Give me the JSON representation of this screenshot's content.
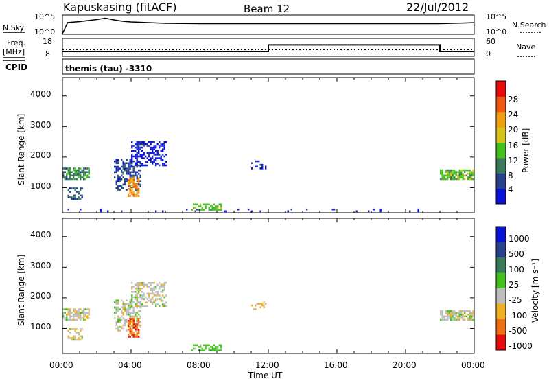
{
  "header": {
    "station": "Kapuskasing (fitACF)",
    "beam": "Beam 12",
    "date": "22/Jul/2012"
  },
  "panels": {
    "nsky_label": "N.Sky",
    "nsearch_label": "N.Search",
    "nsky_ticks": [
      "10^5",
      "10^0"
    ],
    "nsearch_ticks": [
      "10^5",
      "10^0"
    ],
    "freq_label": "Freq.",
    "freq_unit": "[MHz]",
    "freq_ticks": [
      "18",
      "8"
    ],
    "nave_label": "Nave",
    "nave_ticks": [
      "60",
      "0"
    ],
    "cpid_label": "CPID",
    "cpid_text": "themis (tau) -3310"
  },
  "chart_data": [
    {
      "type": "line",
      "name": "noise",
      "x_hours": [
        0,
        0.3,
        1,
        1.5,
        2,
        2.5,
        3,
        3.5,
        4,
        6,
        8,
        12,
        16,
        20,
        22,
        23.5,
        24
      ],
      "y_log": [
        0,
        3.2,
        3.5,
        3.8,
        4.1,
        4.5,
        4.0,
        3.6,
        3.4,
        3.0,
        2.9,
        2.9,
        2.9,
        2.9,
        2.9,
        3.1,
        3.2
      ],
      "ylim_log": [
        0,
        5
      ]
    },
    {
      "type": "line",
      "name": "frequency",
      "x_hours": [
        0,
        12,
        12,
        22,
        22,
        24
      ],
      "y": [
        10.5,
        10.5,
        14.5,
        14.5,
        10.5,
        10.5
      ],
      "ylim": [
        8,
        18
      ],
      "nave": 22
    },
    {
      "type": "heatmap",
      "name": "power",
      "ylabel": "Slant Range [km]",
      "xlim": [
        0,
        24
      ],
      "ylim": [
        180,
        4600
      ],
      "yticks": [
        "1000",
        "2000",
        "3000",
        "4000"
      ],
      "colorbar_label": "Power [dB]",
      "colorbar_ticks": [
        "4",
        "8",
        "12",
        "16",
        "20",
        "24",
        "28"
      ],
      "colors": [
        "#0b12d8",
        "#27418d",
        "#3a7a5a",
        "#45c11e",
        "#d7c21a",
        "#f0a010",
        "#ef5a10",
        "#e70d0d"
      ],
      "regions": [
        {
          "t0": 0.0,
          "t1": 1.6,
          "r0": 1250,
          "r1": 1600,
          "c": 2,
          "density": 0.7
        },
        {
          "t0": 0.3,
          "t1": 1.2,
          "r0": 600,
          "r1": 950,
          "c": 1,
          "density": 0.6
        },
        {
          "t0": 3.0,
          "t1": 4.5,
          "r0": 900,
          "r1": 1900,
          "c": 1,
          "density": 0.5
        },
        {
          "t0": 4.0,
          "t1": 6.0,
          "r0": 1700,
          "r1": 2500,
          "c": 0,
          "density": 0.55
        },
        {
          "t0": 3.8,
          "t1": 4.4,
          "r0": 700,
          "r1": 1300,
          "c": 5,
          "density": 0.75
        },
        {
          "t0": 7.5,
          "t1": 9.2,
          "r0": 250,
          "r1": 450,
          "c": 3,
          "density": 0.6
        },
        {
          "t0": 22.0,
          "t1": 24.0,
          "r0": 1250,
          "r1": 1550,
          "c": 3,
          "density": 0.75
        },
        {
          "t0": 0.0,
          "t1": 21.0,
          "r0": 200,
          "r1": 260,
          "c": 0,
          "density": 0.08
        },
        {
          "t0": 11.0,
          "t1": 12.0,
          "r0": 1600,
          "r1": 1850,
          "c": 0,
          "density": 0.3
        }
      ]
    },
    {
      "type": "heatmap",
      "name": "velocity",
      "ylabel": "Slant Range [km]",
      "xlabel": "Time UT",
      "xlim": [
        0,
        24
      ],
      "ylim": [
        180,
        4600
      ],
      "yticks": [
        "1000",
        "2000",
        "3000",
        "4000"
      ],
      "xticks": [
        "00:00",
        "04:00",
        "08:00",
        "12:00",
        "16:00",
        "20:00",
        "00:00"
      ],
      "colorbar_label": "Velocity [m s⁻¹]",
      "colorbar_ticks": [
        "1000",
        "500",
        "100",
        "25",
        "-25",
        "-100",
        "-500",
        "-1000"
      ],
      "colors": [
        "#0b12d8",
        "#27418d",
        "#3a7a5a",
        "#45c11e",
        "#bdbdbd",
        "#f0b020",
        "#ef7010",
        "#e70d0d"
      ],
      "regions": [
        {
          "t0": 0.0,
          "t1": 1.6,
          "r0": 1250,
          "r1": 1600,
          "c": 4,
          "density": 0.7
        },
        {
          "t0": 0.3,
          "t1": 1.2,
          "r0": 600,
          "r1": 950,
          "c": 4,
          "density": 0.6
        },
        {
          "t0": 3.0,
          "t1": 4.5,
          "r0": 900,
          "r1": 1900,
          "c": 4,
          "density": 0.5
        },
        {
          "t0": 4.0,
          "t1": 6.0,
          "r0": 1700,
          "r1": 2500,
          "c": 4,
          "density": 0.55
        },
        {
          "t0": 3.8,
          "t1": 4.4,
          "r0": 700,
          "r1": 1300,
          "c": 6,
          "density": 0.75
        },
        {
          "t0": 7.5,
          "t1": 9.2,
          "r0": 250,
          "r1": 450,
          "c": 3,
          "density": 0.6
        },
        {
          "t0": 22.0,
          "t1": 24.0,
          "r0": 1250,
          "r1": 1550,
          "c": 4,
          "density": 0.75
        },
        {
          "t0": 11.0,
          "t1": 12.0,
          "r0": 1600,
          "r1": 1850,
          "c": 5,
          "density": 0.3
        }
      ]
    }
  ]
}
